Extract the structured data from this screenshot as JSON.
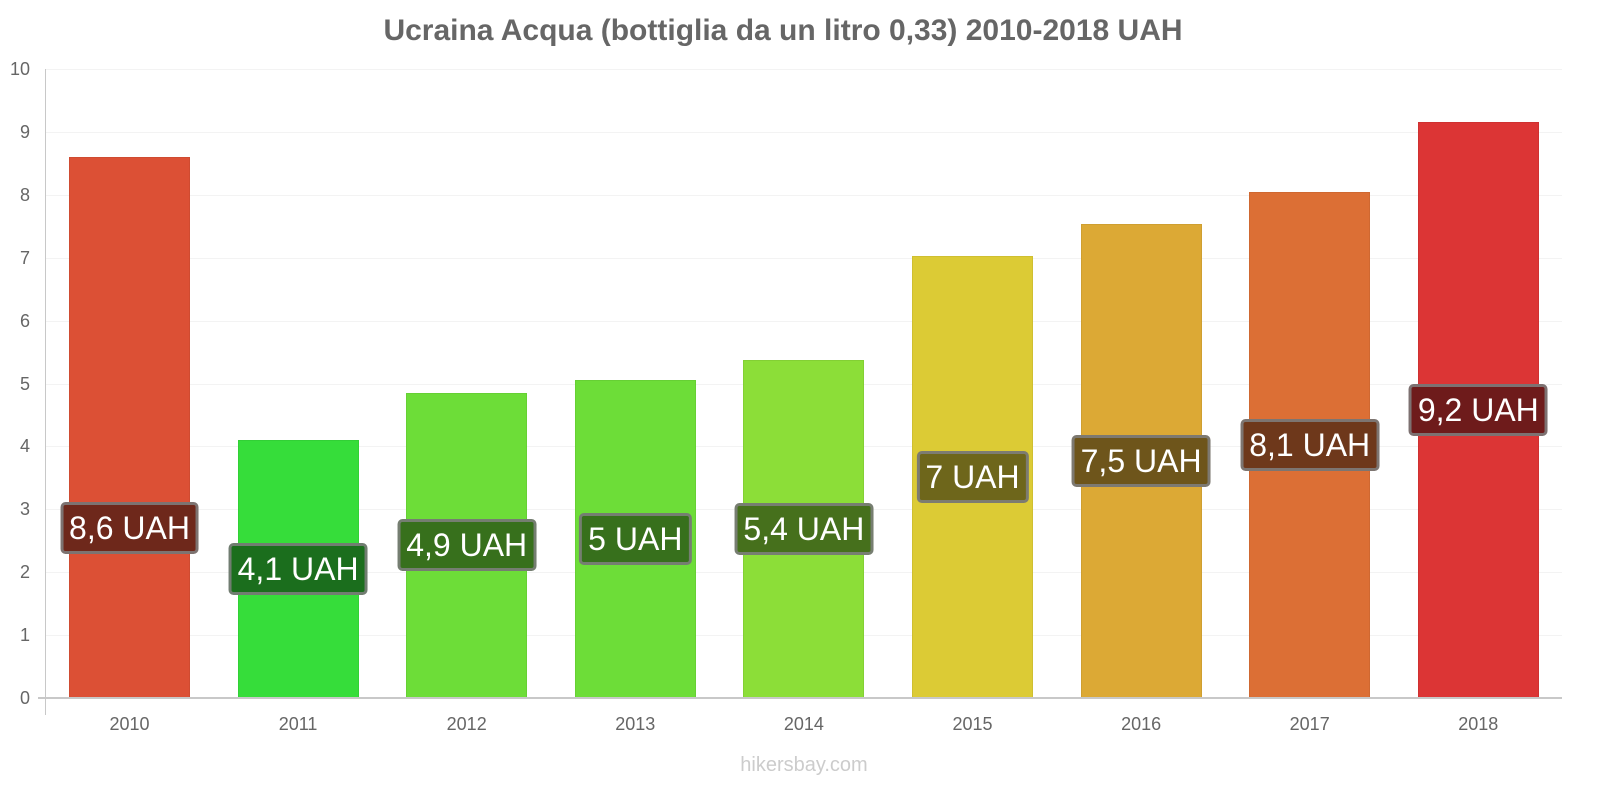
{
  "chart_data": {
    "type": "bar",
    "title": "Ucraina Acqua (bottiglia da un litro 0,33) 2010-2018 UAH",
    "xlabel": "",
    "ylabel": "",
    "ylim": [
      0,
      10
    ],
    "yticks": [
      "0",
      "1",
      "2",
      "3",
      "4",
      "5",
      "6",
      "7",
      "8",
      "9",
      "10"
    ],
    "grid": true,
    "legend": null,
    "categories": [
      "2010",
      "2011",
      "2012",
      "2013",
      "2014",
      "2015",
      "2016",
      "2017",
      "2018"
    ],
    "values": [
      8.6,
      4.1,
      4.85,
      5.05,
      5.37,
      7.03,
      7.53,
      8.05,
      9.15
    ],
    "data_labels": [
      "8,6 UAH",
      "4,1 UAH",
      "4,9 UAH",
      "5 UAH",
      "5,4 UAH",
      "7 UAH",
      "7,5 UAH",
      "8,1 UAH",
      "9,2 UAH"
    ],
    "colors": [
      "#dc5035",
      "#36dd3a",
      "#6ddd38",
      "#6ddd38",
      "#8cde38",
      "#dccb35",
      "#dca935",
      "#dc6f35",
      "#dc3535"
    ],
    "label_colors": [
      "#6e281b",
      "#1b6e1d",
      "#37701c",
      "#37701c",
      "#46701c",
      "#6e661b",
      "#6e551b",
      "#6e381b",
      "#6e1b1b"
    ]
  },
  "watermark": "hikersbay.com"
}
